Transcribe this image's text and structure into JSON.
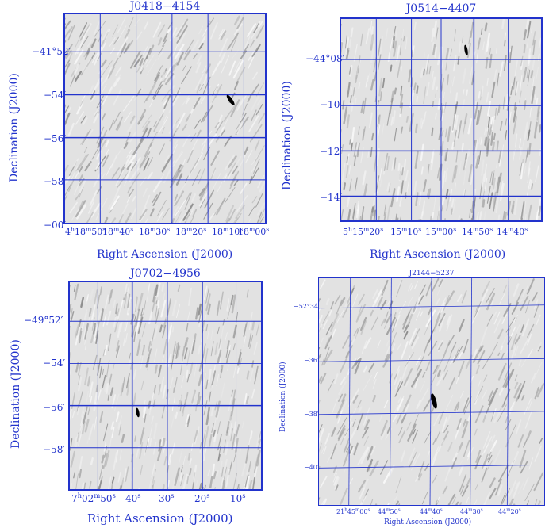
{
  "panels": [
    {
      "title": "J0418−4154",
      "xlabel": "Right Ascension (J2000)",
      "ylabel": "Declination (J2000)",
      "yticks": [
        "−41°52′",
        "−54′",
        "−56′",
        "−58′",
        "−00′"
      ],
      "xticks": [
        "4h18m50s",
        "18m40s",
        "18m30s",
        "18m20s",
        "18m10s",
        "18m00s"
      ]
    },
    {
      "title": "J0514−4407",
      "xlabel": "Right Ascension (J2000)",
      "ylabel": "Declination (J2000)",
      "yticks": [
        "−44°08′",
        "−10′",
        "−12′",
        "−14′"
      ],
      "xticks": [
        "5h15m20s",
        "15m10s",
        "15m00s",
        "14m50s",
        "14m40s"
      ]
    },
    {
      "title": "J0702−4956",
      "xlabel": "Right Ascension (J2000)",
      "ylabel": "Declination (J2000)",
      "yticks": [
        "−49°52′",
        "−54′",
        "−56′",
        "−58′"
      ],
      "xticks": [
        "7h02m50s",
        "40s",
        "30s",
        "20s",
        "10s"
      ]
    },
    {
      "title": "J2144−5237",
      "xlabel": "Right Ascension (J2000)",
      "ylabel": "Declination (J2000)",
      "yticks": [
        "−52°34′",
        "−36′",
        "−38′",
        "−40′"
      ],
      "xticks": [
        "21h45m00s",
        "44m50s",
        "44m40s",
        "44m30s",
        "44m20s"
      ]
    }
  ],
  "colors": {
    "axis": "#2233cc",
    "grid": "#2233cc",
    "source": "#000000",
    "noise": "#9a9a9a"
  }
}
